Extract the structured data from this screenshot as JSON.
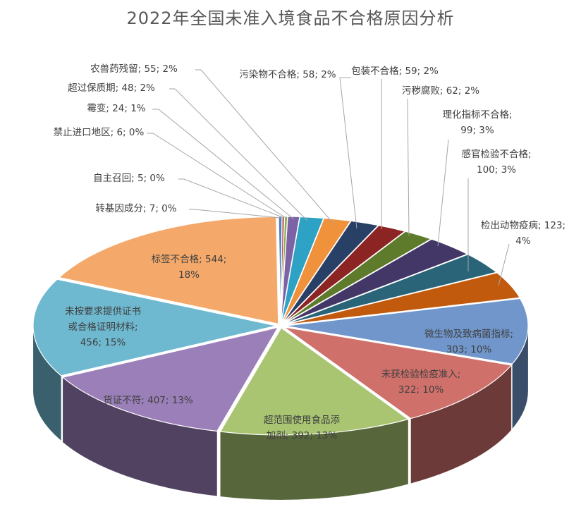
{
  "chart_data": {
    "type": "pie",
    "title": "2022年全国未准入境食品不合格原因分析",
    "slices": [
      {
        "label": "标签不合格",
        "value": 544,
        "percent": "18%",
        "color": "#F4A96A"
      },
      {
        "label": "未按要求提供证书或合格证明材料",
        "value": 456,
        "percent": "15%",
        "color": "#6EB9D0"
      },
      {
        "label": "货证不符",
        "value": 407,
        "percent": "13%",
        "color": "#9A7FB8"
      },
      {
        "label": "超范围使用食品添加剂",
        "value": 392,
        "percent": "13%",
        "color": "#A9C572"
      },
      {
        "label": "未获检验检疫准入",
        "value": 322,
        "percent": "10%",
        "color": "#D0706B"
      },
      {
        "label": "微生物及致病菌指标",
        "value": 303,
        "percent": "10%",
        "color": "#7096CB"
      },
      {
        "label": "检出动物疫病",
        "value": 123,
        "percent": "4%",
        "color": "#C25A0E"
      },
      {
        "label": "感官检验不合格",
        "value": 100,
        "percent": "3%",
        "color": "#2A6478"
      },
      {
        "label": "理化指标不合格",
        "value": 99,
        "percent": "3%",
        "color": "#433768"
      },
      {
        "label": "污秽腐败",
        "value": 62,
        "percent": "2%",
        "color": "#5E7B2C"
      },
      {
        "label": "包装不合格",
        "value": 59,
        "percent": "2%",
        "color": "#8C2424"
      },
      {
        "label": "污染物不合格",
        "value": 58,
        "percent": "2%",
        "color": "#283F66"
      },
      {
        "label": "农兽药残留",
        "value": 55,
        "percent": "2%",
        "color": "#F0913C"
      },
      {
        "label": "超过保质期",
        "value": 48,
        "percent": "2%",
        "color": "#2DA2C4"
      },
      {
        "label": "霉变",
        "value": 24,
        "percent": "1%",
        "color": "#7C63A6"
      },
      {
        "label": "禁止进口地区",
        "value": 6,
        "percent": "0%",
        "color": "#8FAE54"
      },
      {
        "label": "自主召回",
        "value": 5,
        "percent": "0%",
        "color": "#C0504D"
      },
      {
        "label": "转基因成分",
        "value": 7,
        "percent": "0%",
        "color": "#4F81BD"
      }
    ],
    "data_labels": [
      [
        "标签不合格; 544;",
        "18%"
      ],
      [
        "未按要求提供证书",
        "或合格证明材料;",
        "456; 15%"
      ],
      [
        "货证不符; 407; 13%"
      ],
      [
        "超范围使用食品添",
        "加剂; 392; 13%"
      ],
      [
        "未获检验检疫准入;",
        "322; 10%"
      ],
      [
        "微生物及致病菌指标;",
        "303; 10%"
      ],
      [
        "检出动物疫病; 123;",
        "4%"
      ],
      [
        "感官检验不合格;",
        "100; 3%"
      ],
      [
        "理化指标不合格;",
        "99; 3%"
      ],
      [
        "污秽腐败; 62; 2%"
      ],
      [
        "包装不合格; 59; 2%"
      ],
      [
        "污染物不合格; 58; 2%"
      ],
      [
        "农兽药残留; 55; 2%"
      ],
      [
        "超过保质期; 48; 2%"
      ],
      [
        "霉变; 24; 1%"
      ],
      [
        "禁止进口地区; 6; 0%"
      ],
      [
        "自主召回; 5; 0%"
      ],
      [
        "转基因成分; 7; 0%"
      ]
    ],
    "style": "3d-exploded-pie",
    "legend": "none"
  }
}
